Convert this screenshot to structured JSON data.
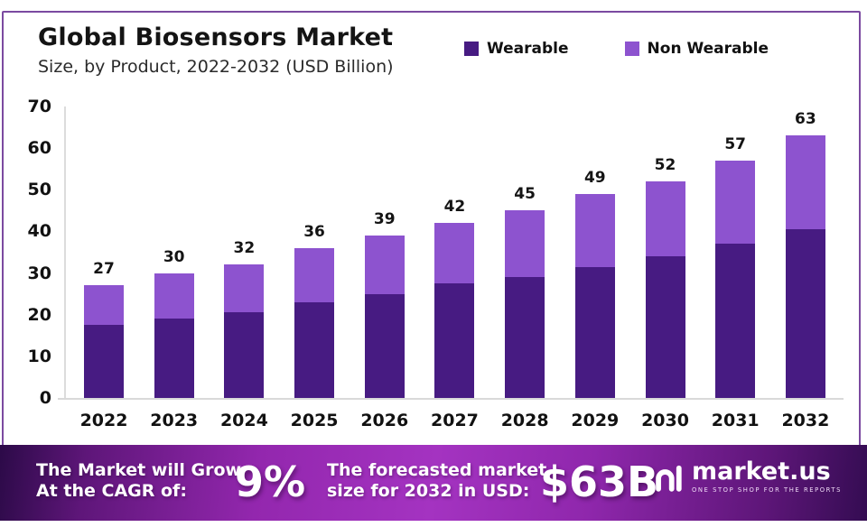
{
  "header": {
    "title": "Global Biosensors Market",
    "subtitle": "Size, by Product, 2022-2032 (USD Billion)"
  },
  "chart_data": {
    "type": "bar",
    "stacked": true,
    "title": "Global Biosensors Market Size, by Product, 2022-2032 (USD Billion)",
    "categories": [
      "2022",
      "2023",
      "2024",
      "2025",
      "2026",
      "2027",
      "2028",
      "2029",
      "2030",
      "2031",
      "2032"
    ],
    "series": [
      {
        "name": "Wearable",
        "color": "#471b82",
        "values": [
          17.5,
          19,
          20.5,
          23,
          25,
          27.5,
          29,
          31.5,
          34,
          37,
          40.5
        ]
      },
      {
        "name": "Non Wearable",
        "color": "#8d53cf",
        "values": [
          9.5,
          11,
          11.5,
          13,
          14,
          14.5,
          16,
          17.5,
          18,
          20,
          22.5
        ]
      }
    ],
    "totals": [
      27,
      30,
      32,
      36,
      39,
      42,
      45,
      49,
      52,
      57,
      63
    ],
    "xlabel": "",
    "ylabel": "",
    "ylim": [
      0,
      70
    ],
    "yticks": [
      0,
      10,
      20,
      30,
      40,
      50,
      60,
      70
    ],
    "grid": false,
    "legend_position": "top"
  },
  "banner": {
    "cagr_line1": "The Market will Grow",
    "cagr_line2": "At the CAGR of:",
    "cagr_value": "9%",
    "forecast_line1": "The forecasted market",
    "forecast_line2": "size for 2032 in USD:",
    "forecast_value": "$63B",
    "brand": {
      "name": "market.us",
      "tagline": "ONE STOP SHOP FOR THE REPORTS"
    }
  }
}
